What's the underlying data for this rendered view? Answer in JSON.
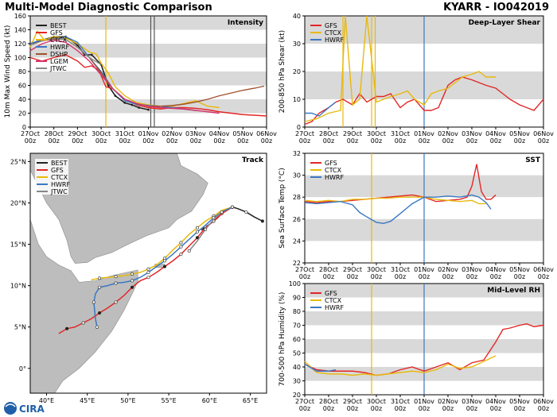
{
  "header": {
    "title_left": "Multi-Model Diagnostic Comparison",
    "title_right": "KYARR - IO042019",
    "logo_text": "CIRA"
  },
  "colors": {
    "BEST": "#222222",
    "GFS": "#e32626",
    "CTCX": "#e8b90c",
    "HWRF": "#3b78c2",
    "DSHP": "#a0522d",
    "LGEM": "#d6336c",
    "JTWC": "#888888",
    "band": "#d9d9d9",
    "vline_gold": "#e8b90c",
    "vline_blue": "#3b78c2"
  },
  "date_ticks": [
    "27Oct\n00z",
    "28Oct\n00z",
    "29Oct\n00z",
    "30Oct\n00z",
    "31Oct\n00z",
    "01Nov\n00z",
    "02Nov\n00z",
    "03Nov\n00z",
    "04Nov\n00z",
    "05Nov\n00z",
    "06Nov\n00z"
  ],
  "chart_data": [
    {
      "type": "line",
      "panel": "Intensity",
      "ylabel": "10m Max Wind Speed (kt)",
      "ylim": [
        0,
        160
      ],
      "yticks": [
        0,
        20,
        40,
        60,
        80,
        100,
        120,
        140,
        160
      ],
      "xlim_days": [
        0,
        10
      ],
      "legend": [
        "BEST",
        "GFS",
        "CTCX",
        "HWRF",
        "DSHP",
        "LGEM",
        "JTWC"
      ],
      "series": [
        {
          "name": "BEST",
          "x": [
            0,
            0.5,
            1,
            1.5,
            2,
            2.3,
            2.6,
            3,
            3.3,
            3.6,
            4,
            4.3,
            4.6,
            5
          ],
          "y": [
            120,
            125,
            130,
            130,
            118,
            104,
            104,
            90,
            60,
            45,
            35,
            32,
            28,
            25
          ]
        },
        {
          "name": "GFS",
          "x": [
            0,
            0.5,
            1,
            1.5,
            2,
            2.3,
            2.6,
            2.9,
            3.2,
            3.5,
            4,
            4.5,
            5,
            5.5,
            6,
            6.5,
            7,
            7.5,
            8,
            8.5,
            9,
            9.5,
            10
          ],
          "y": [
            100,
            95,
            100,
            104,
            95,
            86,
            88,
            82,
            58,
            55,
            40,
            32,
            28,
            26,
            28,
            28,
            27,
            25,
            22,
            20,
            18,
            17,
            16
          ]
        },
        {
          "name": "CTCX",
          "x": [
            0,
            0.3,
            0.6,
            1,
            1.5,
            2,
            2.5,
            2.8,
            3,
            3.3,
            3.6,
            4,
            4.5,
            5,
            5.5,
            6,
            6.5,
            7,
            7.5,
            8
          ],
          "y": [
            115,
            138,
            125,
            130,
            128,
            120,
            108,
            105,
            92,
            78,
            58,
            45,
            35,
            32,
            30,
            30,
            34,
            38,
            30,
            28
          ]
        },
        {
          "name": "HWRF",
          "x": [
            0,
            0.5,
            1,
            1.5,
            2,
            2.5,
            3,
            3.5,
            4,
            4.5,
            5,
            5.5,
            6,
            6.5,
            7
          ],
          "y": [
            120,
            126,
            125,
            130,
            122,
            100,
            80,
            55,
            38,
            33,
            31,
            30,
            28,
            26,
            24
          ]
        },
        {
          "name": "DSHP",
          "x": [
            0,
            0.5,
            1,
            1.5,
            2,
            2.5,
            3,
            3.5,
            4,
            4.5,
            5,
            5.5,
            6,
            6.5,
            7,
            7.5,
            8,
            8.5,
            9,
            9.5,
            9.9
          ],
          "y": [
            118,
            124,
            127,
            126,
            115,
            100,
            78,
            55,
            40,
            34,
            30,
            30,
            31,
            33,
            36,
            40,
            45,
            49,
            53,
            56,
            59
          ]
        },
        {
          "name": "LGEM",
          "x": [
            0,
            0.5,
            1,
            1.5,
            2,
            2.5,
            3,
            3.5,
            4,
            4.5,
            5,
            5.5,
            6,
            6.5,
            7,
            7.5,
            8
          ],
          "y": [
            110,
            120,
            125,
            122,
            110,
            95,
            75,
            55,
            40,
            34,
            30,
            28,
            27,
            26,
            24,
            22,
            20
          ]
        },
        {
          "name": "JTWC",
          "x": [
            0,
            0.5,
            1,
            1.5,
            2,
            2.5,
            3
          ],
          "y": [
            118,
            124,
            128,
            126,
            115,
            100,
            90
          ]
        }
      ],
      "vlines": [
        {
          "x": 3.2,
          "color": "gold"
        },
        {
          "x": 5.1,
          "color": "gray"
        },
        {
          "x": 5.25,
          "color": "gray"
        }
      ]
    },
    {
      "type": "line",
      "panel": "Deep-Layer Shear",
      "ylabel": "200-850 hPa Shear (kt)",
      "ylim": [
        0,
        40
      ],
      "yticks": [
        0,
        10,
        20,
        30,
        40
      ],
      "legend": [
        "GFS",
        "CTCX",
        "HWRF"
      ],
      "series": [
        {
          "name": "GFS",
          "x": [
            0,
            0.3,
            0.6,
            1,
            1.3,
            1.6,
            2,
            2.3,
            2.6,
            3,
            3.3,
            3.6,
            4,
            4.3,
            4.6,
            5,
            5.3,
            5.6,
            6,
            6.3,
            6.6,
            7,
            7.3,
            7.6,
            8,
            8.3,
            8.6,
            9,
            9.3,
            9.6,
            10
          ],
          "y": [
            1,
            2,
            5,
            7,
            9,
            10,
            8,
            12,
            9,
            11,
            11,
            12,
            7,
            9,
            10,
            6,
            6,
            7,
            15,
            17,
            18,
            17,
            16,
            15,
            14,
            12,
            10,
            8,
            7,
            6,
            10
          ]
        },
        {
          "name": "CTCX",
          "x": [
            0,
            0.5,
            1,
            1.5,
            1.7,
            2,
            2.3,
            2.6,
            3,
            3.3,
            3.6,
            4,
            4.3,
            4.6,
            5,
            5.3,
            5.6,
            6,
            6.3,
            6.6,
            7,
            7.3,
            7.6,
            8
          ],
          "y": [
            2,
            3,
            5,
            6,
            40,
            8,
            10,
            40,
            9,
            10,
            11,
            12,
            13,
            10,
            8,
            12,
            13,
            14,
            16,
            18,
            19,
            20,
            18,
            18
          ]
        },
        {
          "name": "HWRF",
          "x": [
            0,
            0.3,
            0.6,
            1,
            1.3
          ],
          "y": [
            5,
            5,
            4,
            7,
            9
          ]
        }
      ],
      "vlines": [
        {
          "x": 1.6,
          "color": "gold"
        },
        {
          "x": 2.8,
          "color": "gold"
        },
        {
          "x": 2.95,
          "color": "gold"
        },
        {
          "x": 5,
          "color": "blue"
        }
      ]
    },
    {
      "type": "line",
      "panel": "SST",
      "ylabel": "Sea Surface Temp (°C)",
      "ylim": [
        22,
        32
      ],
      "yticks": [
        22,
        24,
        26,
        28,
        30,
        32
      ],
      "legend": [
        "GFS",
        "CTCX",
        "HWRF"
      ],
      "series": [
        {
          "name": "GFS",
          "x": [
            0,
            0.5,
            1,
            1.5,
            2,
            2.5,
            3,
            3.5,
            4,
            4.5,
            5,
            5.5,
            6,
            6.5,
            6.8,
            7,
            7.2,
            7.4,
            7.6,
            7.8,
            8
          ],
          "y": [
            27.6,
            27.5,
            27.6,
            27.6,
            27.7,
            27.8,
            27.9,
            28,
            28.1,
            28.2,
            28.0,
            27.6,
            27.7,
            27.8,
            28.0,
            29.0,
            31.0,
            28.5,
            27.8,
            27.8,
            28.2
          ]
        },
        {
          "name": "CTCX",
          "x": [
            0,
            0.5,
            1,
            1.5,
            2,
            2.5,
            3,
            3.5,
            4,
            4.5,
            5,
            5.5,
            6,
            6.5,
            7,
            7.3,
            7.6
          ],
          "y": [
            27.7,
            27.6,
            27.7,
            27.6,
            27.8,
            27.8,
            27.9,
            27.9,
            28.0,
            28.0,
            28.0,
            27.8,
            27.7,
            27.6,
            27.7,
            27.4,
            27.4
          ]
        },
        {
          "name": "HWRF",
          "x": [
            0,
            0.5,
            1,
            1.5,
            2,
            2.3,
            2.6,
            3,
            3.3,
            3.6,
            4,
            4.5,
            5,
            5.5,
            6,
            6.5,
            7,
            7.3,
            7.6,
            7.8
          ],
          "y": [
            27.5,
            27.4,
            27.5,
            27.6,
            27.3,
            26.6,
            26.2,
            25.7,
            25.6,
            25.8,
            26.5,
            27.4,
            28.0,
            28.0,
            28.1,
            28.0,
            28.2,
            28.0,
            27.5,
            26.9
          ]
        }
      ],
      "vlines": [
        {
          "x": 2.8,
          "color": "gold"
        },
        {
          "x": 5,
          "color": "blue"
        }
      ]
    },
    {
      "type": "line",
      "panel": "Mid-Level RH",
      "ylabel": "700-500 hPa Humidity (%)",
      "ylim": [
        20,
        100
      ],
      "yticks": [
        20,
        30,
        40,
        50,
        60,
        70,
        80,
        90,
        100
      ],
      "legend": [
        "GFS",
        "CTCX",
        "HWRF"
      ],
      "series": [
        {
          "name": "GFS",
          "x": [
            0,
            0.5,
            1,
            1.5,
            2,
            2.5,
            3,
            3.5,
            4,
            4.5,
            5,
            5.5,
            6,
            6.5,
            7,
            7.5,
            8,
            8.3,
            8.6,
            9,
            9.3,
            9.6,
            10
          ],
          "y": [
            42,
            38,
            37,
            37,
            37,
            36,
            34,
            35,
            38,
            40,
            37,
            40,
            43,
            38,
            43,
            45,
            58,
            67,
            68,
            70,
            71,
            69,
            70
          ]
        },
        {
          "name": "CTCX",
          "x": [
            0,
            0.5,
            1,
            1.5,
            2,
            2.5,
            3,
            3.5,
            4,
            4.5,
            5,
            5.5,
            6,
            6.5,
            7,
            7.5,
            8
          ],
          "y": [
            44,
            36,
            35,
            35,
            34,
            35,
            34,
            35,
            36,
            37,
            36,
            38,
            42,
            39,
            40,
            44,
            48
          ]
        },
        {
          "name": "HWRF",
          "x": [
            0,
            0.5,
            1,
            1.3
          ],
          "y": [
            42,
            37,
            37,
            38
          ]
        }
      ],
      "vlines": [
        {
          "x": 2.8,
          "color": "gold"
        },
        {
          "x": 5,
          "color": "blue"
        }
      ]
    },
    {
      "type": "scatter",
      "panel": "Track",
      "xlim": [
        38,
        67
      ],
      "ylim": [
        -3,
        26
      ],
      "xticks": [
        "40°E",
        "45°E",
        "50°E",
        "55°E",
        "60°E",
        "65°E"
      ],
      "yticks": [
        "0°",
        "5°N",
        "10°N",
        "15°N",
        "20°N",
        "25°N"
      ],
      "legend": [
        "BEST",
        "GFS",
        "CTCX",
        "HWRF",
        "JTWC"
      ],
      "series": [
        {
          "name": "BEST",
          "lon": [
            66.5,
            65.5,
            64.5,
            63.5,
            62.8,
            62.0,
            61.5,
            61.0,
            60.5,
            60.0,
            59.5,
            59.0
          ],
          "lat": [
            17.8,
            18.3,
            18.9,
            19.3,
            19.5,
            19.2,
            18.7,
            18.2,
            17.8,
            17.4,
            17.1,
            16.7
          ]
        },
        {
          "name": "GFS",
          "lon": [
            62.8,
            61.5,
            60.5,
            59.5,
            58.5,
            57.5,
            56.5,
            55.5,
            54.5,
            53.5,
            52.5,
            51.5,
            50.5,
            49.5,
            48.5,
            47.5,
            46.5,
            45.5,
            44.5,
            43.5,
            42.5,
            41.5
          ],
          "lat": [
            19.5,
            18.7,
            17.8,
            17.0,
            15.8,
            14.8,
            13.8,
            13.0,
            12.3,
            11.6,
            11.0,
            10.6,
            9.8,
            8.8,
            8.0,
            7.3,
            6.7,
            6.0,
            5.5,
            5.0,
            4.8,
            4.2
          ]
        },
        {
          "name": "CTCX",
          "lon": [
            62.8,
            61.5,
            60.5,
            59.5,
            58.5,
            57.5,
            56.5,
            55.5,
            54.5,
            53.5,
            52.5,
            51.5,
            50.5,
            49.5,
            48.5,
            47.5,
            46.5,
            45.5
          ],
          "lat": [
            19.5,
            19.1,
            18.4,
            17.8,
            17.0,
            16.2,
            15.2,
            14.3,
            13.3,
            12.5,
            12.0,
            11.6,
            11.4,
            11.2,
            11.1,
            11.0,
            10.9,
            10.7
          ]
        },
        {
          "name": "HWRF",
          "lon": [
            62.8,
            61.5,
            60.5,
            59.5,
            58.5,
            57.5,
            56.5,
            55.5,
            54.5,
            53.5,
            52.5,
            51.5,
            50.5,
            49.5,
            48.5,
            47.5,
            46.5,
            46.0,
            45.8,
            46.0,
            46.2
          ],
          "lat": [
            19.5,
            18.9,
            18.2,
            17.3,
            16.5,
            15.6,
            14.7,
            13.8,
            13.0,
            12.3,
            11.6,
            11.0,
            10.6,
            10.4,
            10.3,
            10.0,
            9.8,
            9.0,
            8.0,
            6.0,
            5.0
          ]
        },
        {
          "name": "JTWC",
          "lon": [
            61.5,
            60.5,
            59.5,
            58.5,
            57.5
          ],
          "lat": [
            18.9,
            18.0,
            16.8,
            15.4,
            14.2
          ]
        }
      ]
    }
  ]
}
